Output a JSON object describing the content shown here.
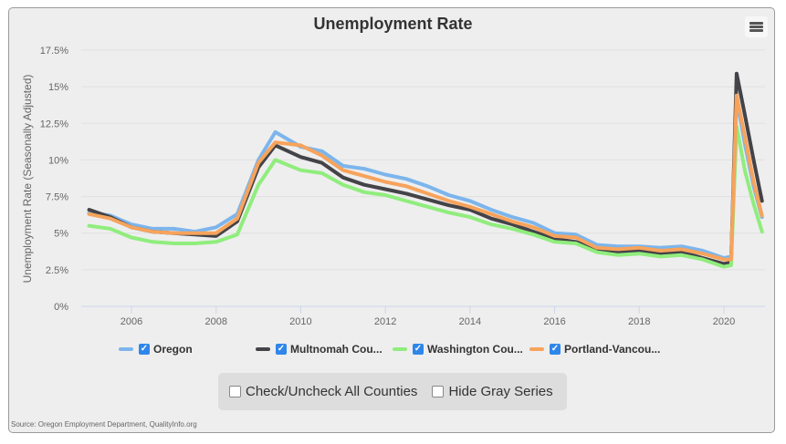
{
  "menu": {
    "icon": "hamburger-menu-icon"
  },
  "controls": {
    "check_all_label": "Check/Uncheck All Counties",
    "check_all_checked": false,
    "hide_gray_label": "Hide Gray Series",
    "hide_gray_checked": false
  },
  "source": "Source: Oregon Employment Department, QualityInfo.org",
  "legend": [
    {
      "label": "Oregon",
      "checked": true
    },
    {
      "label": "Multnomah Cou...",
      "checked": true
    },
    {
      "label": "Washington Cou...",
      "checked": true
    },
    {
      "label": "Portland-Vancou...",
      "checked": true
    }
  ],
  "chart_data": {
    "type": "line",
    "title": "Unemployment Rate",
    "xlabel": "",
    "ylabel": "Unemployment Rate (Seasonally Adjusted)",
    "ylim": [
      0,
      17.5
    ],
    "xlim": [
      2005.0,
      2020.9
    ],
    "yticks": [
      "0%",
      "2.5%",
      "5%",
      "7.5%",
      "10%",
      "12.5%",
      "15%",
      "17.5%"
    ],
    "ytick_values": [
      0,
      2.5,
      5,
      7.5,
      10,
      12.5,
      15,
      17.5
    ],
    "xticks": [
      "2006",
      "2008",
      "2010",
      "2012",
      "2014",
      "2016",
      "2018",
      "2020"
    ],
    "xtick_values": [
      2006,
      2008,
      2010,
      2012,
      2014,
      2016,
      2018,
      2020
    ],
    "grid": true,
    "legend_position": "bottom",
    "x": [
      2005.0,
      2005.5,
      2006.0,
      2006.5,
      2007.0,
      2007.5,
      2008.0,
      2008.5,
      2009.0,
      2009.4,
      2010.0,
      2010.5,
      2011.0,
      2011.5,
      2012.0,
      2012.5,
      2013.0,
      2013.5,
      2014.0,
      2014.5,
      2015.0,
      2015.5,
      2016.0,
      2016.5,
      2017.0,
      2017.5,
      2018.0,
      2018.5,
      2019.0,
      2019.5,
      2020.0,
      2020.17,
      2020.3,
      2020.5,
      2020.7,
      2020.9
    ],
    "series": [
      {
        "name": "Oregon",
        "color": "#7cb5ec",
        "values": [
          6.4,
          6.2,
          5.6,
          5.3,
          5.3,
          5.1,
          5.4,
          6.3,
          10.0,
          11.9,
          10.9,
          10.6,
          9.6,
          9.4,
          9.0,
          8.7,
          8.2,
          7.6,
          7.2,
          6.6,
          6.1,
          5.7,
          5.0,
          4.9,
          4.2,
          4.1,
          4.1,
          4.0,
          4.1,
          3.8,
          3.3,
          3.4,
          14.2,
          11.0,
          8.2,
          6.1
        ]
      },
      {
        "name": "Multnomah County",
        "color": "#434348",
        "values": [
          6.6,
          6.1,
          5.4,
          5.1,
          5.0,
          4.9,
          4.8,
          5.8,
          9.5,
          11.0,
          10.2,
          9.8,
          8.8,
          8.3,
          8.0,
          7.7,
          7.3,
          6.9,
          6.6,
          6.0,
          5.6,
          5.1,
          4.6,
          4.4,
          3.9,
          3.7,
          3.8,
          3.6,
          3.7,
          3.3,
          2.9,
          3.0,
          15.9,
          13.0,
          10.0,
          7.2
        ]
      },
      {
        "name": "Washington County",
        "color": "#90ed7d",
        "values": [
          5.5,
          5.3,
          4.7,
          4.4,
          4.3,
          4.3,
          4.4,
          4.9,
          8.3,
          10.0,
          9.3,
          9.1,
          8.3,
          7.8,
          7.6,
          7.2,
          6.8,
          6.4,
          6.1,
          5.6,
          5.3,
          4.9,
          4.4,
          4.3,
          3.7,
          3.5,
          3.6,
          3.4,
          3.5,
          3.2,
          2.7,
          2.8,
          12.3,
          9.2,
          7.0,
          5.1
        ]
      },
      {
        "name": "Portland-Vancouver",
        "color": "#f7a35c",
        "values": [
          6.3,
          6.0,
          5.4,
          5.1,
          5.0,
          5.0,
          5.0,
          6.0,
          9.8,
          11.2,
          11.0,
          10.3,
          9.3,
          8.9,
          8.5,
          8.2,
          7.7,
          7.2,
          6.8,
          6.3,
          5.8,
          5.4,
          4.8,
          4.7,
          4.0,
          3.9,
          4.0,
          3.8,
          3.9,
          3.6,
          3.2,
          3.2,
          14.4,
          11.5,
          8.5,
          6.2
        ]
      }
    ]
  }
}
